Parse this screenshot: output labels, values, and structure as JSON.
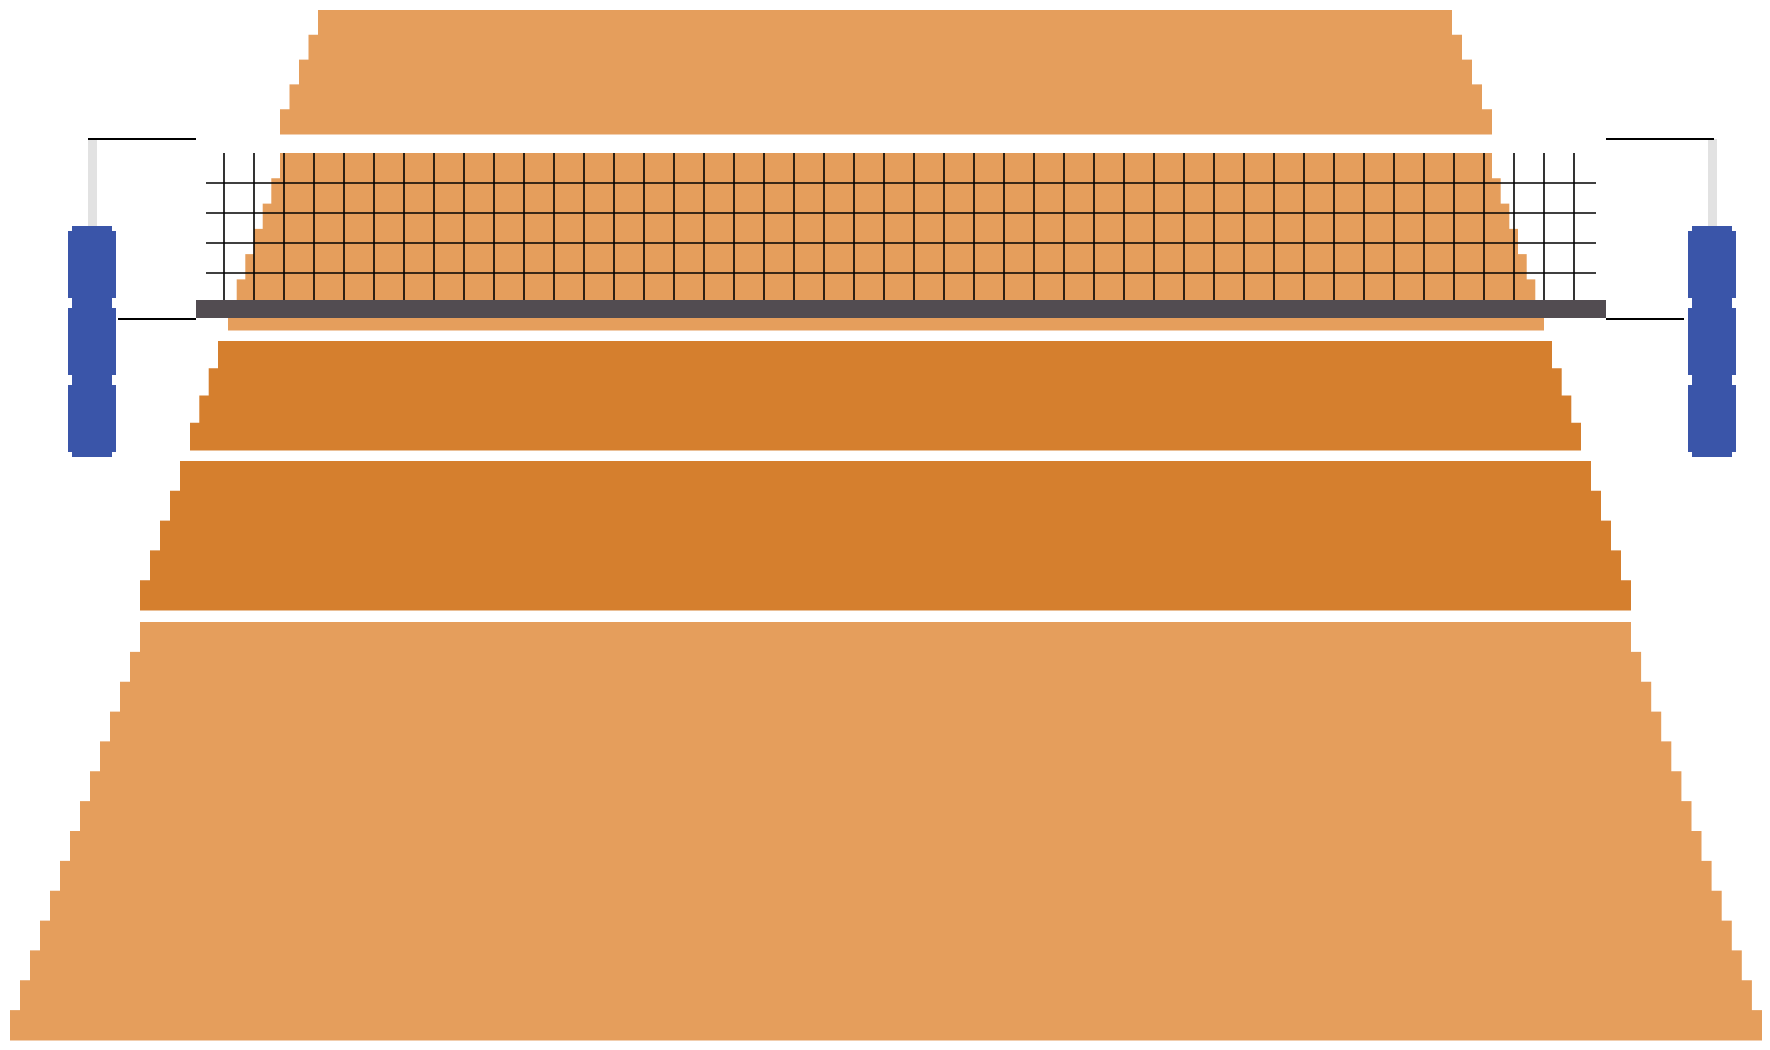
{
  "scene": "volleyball-court",
  "colors": {
    "background": "#ffffff",
    "court_far": "#e59e5c",
    "court_front_zone": "#d57f2e",
    "court_back_zone": "#e59e5c",
    "net_mesh": "#000000",
    "net_band": "#524c51",
    "pole": "#e2e2e2",
    "pole_pad": "#3a55a9",
    "line": "#ffffff"
  },
  "icons": [
    "volleyball-net-icon",
    "net-pole-icon",
    "pole-pad-icon"
  ]
}
